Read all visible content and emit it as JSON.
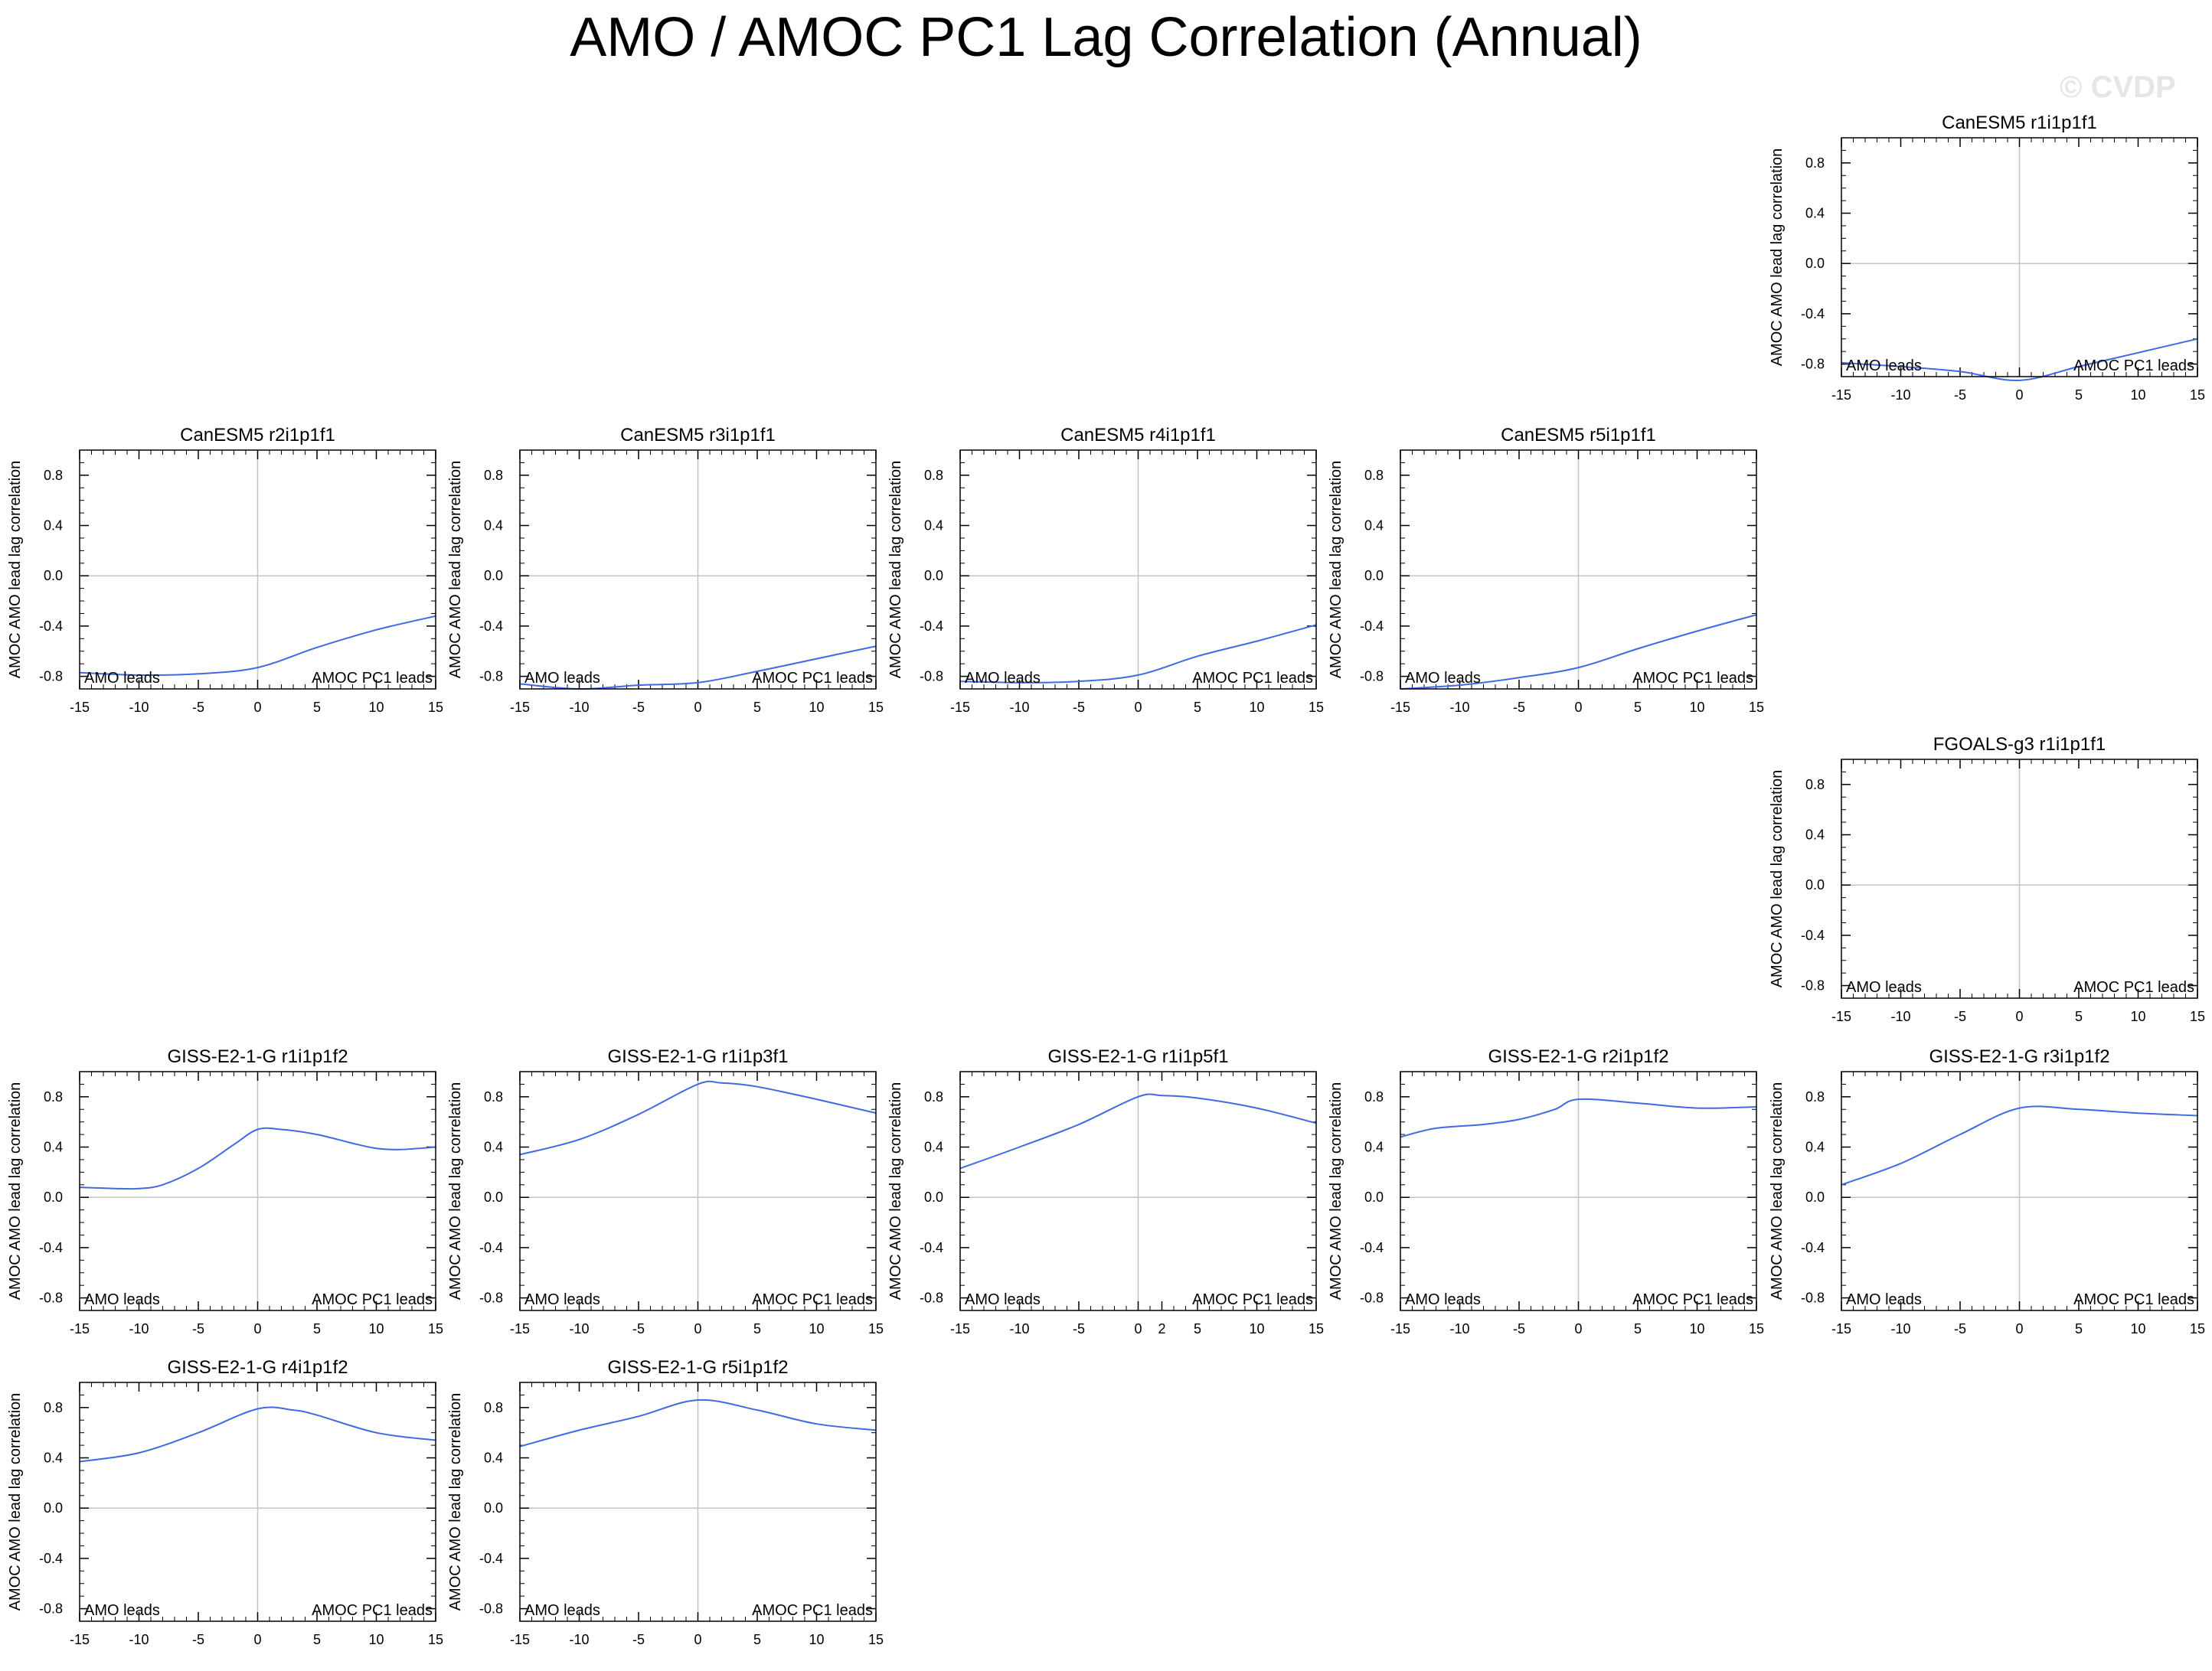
{
  "title": "AMO / AMOC PC1 Lag Correlation (Annual)",
  "watermark": "© CVDP",
  "chart_data": [
    {
      "type": "line",
      "title": "CanESM5 r1i1p1f1",
      "xlabel": "",
      "ylabel": "AMOC AMO lead lag correlation",
      "xlim": [
        -15,
        15
      ],
      "ylim": [
        -0.9,
        1.0
      ],
      "xticks": [
        -15,
        -10,
        -5,
        0,
        5,
        10,
        15
      ],
      "yticks": [
        -0.8,
        -0.4,
        0.0,
        0.4,
        0.8
      ],
      "left_annotation": "AMO leads",
      "right_annotation": "AMOC PC1 leads",
      "x": [
        -15,
        -10,
        -5,
        0,
        5,
        10,
        15
      ],
      "values": [
        -0.79,
        -0.82,
        -0.86,
        -0.93,
        -0.82,
        -0.71,
        -0.6
      ],
      "color": "#4169e1"
    },
    {
      "type": "line",
      "title": "CanESM5 r2i1p1f1",
      "xlabel": "",
      "ylabel": "AMOC AMO lead lag correlation",
      "xlim": [
        -15,
        15
      ],
      "ylim": [
        -0.9,
        1.0
      ],
      "xticks": [
        -15,
        -10,
        -5,
        0,
        5,
        10,
        15
      ],
      "yticks": [
        -0.8,
        -0.4,
        0.0,
        0.4,
        0.8
      ],
      "left_annotation": "AMO leads",
      "right_annotation": "AMOC PC1 leads",
      "x": [
        -15,
        -10,
        -5,
        0,
        5,
        10,
        15
      ],
      "values": [
        -0.77,
        -0.79,
        -0.78,
        -0.73,
        -0.57,
        -0.43,
        -0.32
      ],
      "color": "#4169e1"
    },
    {
      "type": "line",
      "title": "CanESM5 r3i1p1f1",
      "xlabel": "",
      "ylabel": "AMOC AMO lead lag correlation",
      "xlim": [
        -15,
        15
      ],
      "ylim": [
        -0.9,
        1.0
      ],
      "xticks": [
        -15,
        -10,
        -5,
        0,
        5,
        10,
        15
      ],
      "yticks": [
        -0.8,
        -0.4,
        0.0,
        0.4,
        0.8
      ],
      "left_annotation": "AMO leads",
      "right_annotation": "AMOC PC1 leads",
      "x": [
        -15,
        -10,
        -5,
        0,
        5,
        10,
        15
      ],
      "values": [
        -0.86,
        -0.9,
        -0.87,
        -0.85,
        -0.76,
        -0.66,
        -0.56
      ],
      "color": "#4169e1"
    },
    {
      "type": "line",
      "title": "CanESM5 r4i1p1f1",
      "xlabel": "",
      "ylabel": "AMOC AMO lead lag correlation",
      "xlim": [
        -15,
        15
      ],
      "ylim": [
        -0.9,
        1.0
      ],
      "xticks": [
        -15,
        -10,
        -5,
        0,
        5,
        10,
        15
      ],
      "yticks": [
        -0.8,
        -0.4,
        0.0,
        0.4,
        0.8
      ],
      "left_annotation": "AMO leads",
      "right_annotation": "AMOC PC1 leads",
      "x": [
        -15,
        -10,
        -5,
        0,
        5,
        10,
        15
      ],
      "values": [
        -0.84,
        -0.85,
        -0.84,
        -0.79,
        -0.64,
        -0.52,
        -0.39
      ],
      "color": "#4169e1"
    },
    {
      "type": "line",
      "title": "CanESM5 r5i1p1f1",
      "xlabel": "",
      "ylabel": "AMOC AMO lead lag correlation",
      "xlim": [
        -15,
        15
      ],
      "ylim": [
        -0.9,
        1.0
      ],
      "xticks": [
        -15,
        -10,
        -5,
        0,
        5,
        10,
        15
      ],
      "yticks": [
        -0.8,
        -0.4,
        0.0,
        0.4,
        0.8
      ],
      "left_annotation": "AMO leads",
      "right_annotation": "AMOC PC1 leads",
      "x": [
        -15,
        -10,
        -5,
        0,
        5,
        10,
        15
      ],
      "values": [
        -0.9,
        -0.87,
        -0.81,
        -0.73,
        -0.58,
        -0.44,
        -0.31
      ],
      "color": "#4169e1"
    },
    {
      "type": "line",
      "title": "FGOALS-g3 r1i1p1f1",
      "xlabel": "",
      "ylabel": "AMOC AMO lead lag correlation",
      "xlim": [
        -15,
        15
      ],
      "ylim": [
        -0.9,
        1.0
      ],
      "xticks": [
        -15,
        -10,
        -5,
        0,
        5,
        10,
        15
      ],
      "yticks": [
        -0.8,
        -0.4,
        0.0,
        0.4,
        0.8
      ],
      "left_annotation": "AMO leads",
      "right_annotation": "AMOC PC1 leads",
      "x": [],
      "values": [],
      "color": "#4169e1"
    },
    {
      "type": "line",
      "title": "GISS-E2-1-G r1i1p1f2",
      "xlabel": "",
      "ylabel": "AMOC AMO lead lag correlation",
      "xlim": [
        -15,
        15
      ],
      "ylim": [
        -0.9,
        1.0
      ],
      "xticks": [
        -15,
        -10,
        -5,
        0,
        5,
        10,
        15
      ],
      "yticks": [
        -0.8,
        -0.4,
        0.0,
        0.4,
        0.8
      ],
      "left_annotation": "AMO leads",
      "right_annotation": "AMOC PC1 leads",
      "x": [
        -15,
        -12,
        -10,
        -8,
        -5,
        -2,
        0,
        2,
        5,
        8,
        10,
        12,
        15
      ],
      "values": [
        0.08,
        0.07,
        0.07,
        0.1,
        0.23,
        0.42,
        0.54,
        0.54,
        0.5,
        0.43,
        0.39,
        0.38,
        0.4
      ],
      "color": "#4169e1"
    },
    {
      "type": "line",
      "title": "GISS-E2-1-G r1i1p3f1",
      "xlabel": "",
      "ylabel": "AMOC AMO lead lag correlation",
      "xlim": [
        -15,
        15
      ],
      "ylim": [
        -0.9,
        1.0
      ],
      "xticks": [
        -15,
        -10,
        -5,
        0,
        5,
        10,
        15
      ],
      "yticks": [
        -0.8,
        -0.4,
        0.0,
        0.4,
        0.8
      ],
      "left_annotation": "AMO leads",
      "right_annotation": "AMOC PC1 leads",
      "x": [
        -15,
        -10,
        -5,
        0,
        2,
        5,
        10,
        15
      ],
      "values": [
        0.34,
        0.46,
        0.66,
        0.9,
        0.91,
        0.88,
        0.78,
        0.67
      ],
      "color": "#4169e1"
    },
    {
      "type": "line",
      "title": "GISS-E2-1-G r1i1p5f1",
      "xlabel": "",
      "ylabel": "AMOC AMO lead lag correlation",
      "xlim": [
        -15,
        15
      ],
      "ylim": [
        -0.9,
        1.0
      ],
      "xticks": [
        -15,
        -10,
        -5,
        0,
        2,
        5,
        10,
        15
      ],
      "yticks": [
        -0.8,
        -0.4,
        0.0,
        0.4,
        0.8
      ],
      "left_annotation": "AMO leads",
      "right_annotation": "AMOC PC1 leads",
      "x": [
        -15,
        -10,
        -5,
        0,
        2,
        5,
        10,
        15
      ],
      "values": [
        0.23,
        0.4,
        0.58,
        0.8,
        0.81,
        0.79,
        0.71,
        0.59
      ],
      "color": "#4169e1"
    },
    {
      "type": "line",
      "title": "GISS-E2-1-G r2i1p1f2",
      "xlabel": "",
      "ylabel": "AMOC AMO lead lag correlation",
      "xlim": [
        -15,
        15
      ],
      "ylim": [
        -0.9,
        1.0
      ],
      "xticks": [
        -15,
        -10,
        -5,
        0,
        5,
        10,
        15
      ],
      "yticks": [
        -0.8,
        -0.4,
        0.0,
        0.4,
        0.8
      ],
      "left_annotation": "AMO leads",
      "right_annotation": "AMOC PC1 leads",
      "x": [
        -15,
        -12,
        -8,
        -5,
        -2,
        0,
        5,
        10,
        15
      ],
      "values": [
        0.48,
        0.55,
        0.58,
        0.62,
        0.7,
        0.78,
        0.75,
        0.71,
        0.72
      ],
      "color": "#4169e1"
    },
    {
      "type": "line",
      "title": "GISS-E2-1-G r3i1p1f2",
      "xlabel": "",
      "ylabel": "AMOC AMO lead lag correlation",
      "xlim": [
        -15,
        15
      ],
      "ylim": [
        -0.9,
        1.0
      ],
      "xticks": [
        -15,
        -10,
        -5,
        0,
        5,
        10,
        15
      ],
      "yticks": [
        -0.8,
        -0.4,
        0.0,
        0.4,
        0.8
      ],
      "left_annotation": "AMO leads",
      "right_annotation": "AMOC PC1 leads",
      "x": [
        -15,
        -10,
        -5,
        0,
        5,
        10,
        15
      ],
      "values": [
        0.1,
        0.27,
        0.5,
        0.71,
        0.7,
        0.67,
        0.65
      ],
      "color": "#4169e1"
    },
    {
      "type": "line",
      "title": "GISS-E2-1-G r4i1p1f2",
      "xlabel": "",
      "ylabel": "AMOC AMO lead lag correlation",
      "xlim": [
        -15,
        15
      ],
      "ylim": [
        -0.9,
        1.0
      ],
      "xticks": [
        -15,
        -10,
        -5,
        0,
        5,
        10,
        15
      ],
      "yticks": [
        -0.8,
        -0.4,
        0.0,
        0.4,
        0.8
      ],
      "left_annotation": "AMO leads",
      "right_annotation": "AMOC PC1 leads",
      "x": [
        -15,
        -10,
        -5,
        0,
        3,
        5,
        10,
        15
      ],
      "values": [
        0.37,
        0.44,
        0.6,
        0.79,
        0.78,
        0.74,
        0.6,
        0.54
      ],
      "color": "#4169e1"
    },
    {
      "type": "line",
      "title": "GISS-E2-1-G r5i1p1f2",
      "xlabel": "",
      "ylabel": "AMOC AMO lead lag correlation",
      "xlim": [
        -15,
        15
      ],
      "ylim": [
        -0.9,
        1.0
      ],
      "xticks": [
        -15,
        -10,
        -5,
        0,
        5,
        10,
        15
      ],
      "yticks": [
        -0.8,
        -0.4,
        0.0,
        0.4,
        0.8
      ],
      "left_annotation": "AMO leads",
      "right_annotation": "AMOC PC1 leads",
      "x": [
        -15,
        -10,
        -5,
        0,
        5,
        10,
        15
      ],
      "values": [
        0.49,
        0.62,
        0.73,
        0.86,
        0.78,
        0.67,
        0.62
      ],
      "color": "#4169e1"
    }
  ]
}
